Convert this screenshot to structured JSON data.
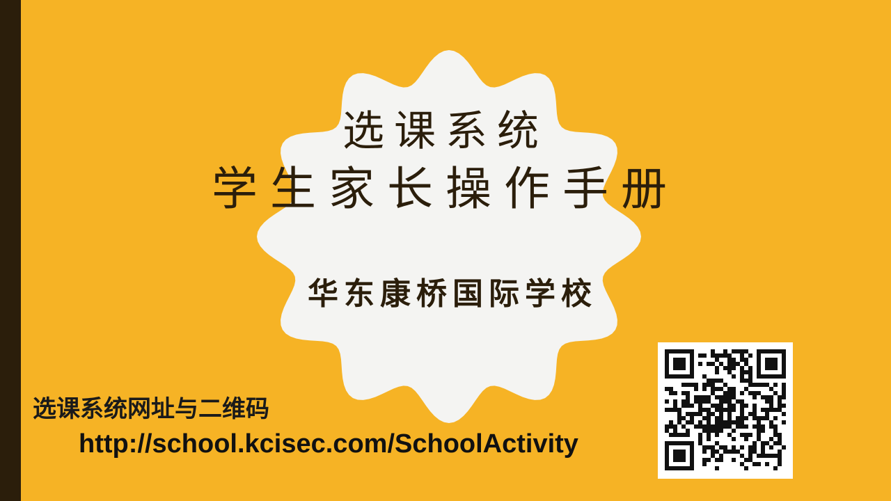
{
  "slide": {
    "title_line_1": "选课系统",
    "title_line_2": "学生家长操作手册",
    "school_name": "华东康桥国际学校",
    "url_caption": "选课系统网址与二维码",
    "url": "http://school.kcisec.com/SchoolActivity"
  },
  "colors": {
    "background": "#F6B325",
    "left_bar": "#2B1E0B",
    "badge_fill": "#F4F4F2",
    "title_text": "#2B1E0B"
  },
  "icons": {
    "qr_code": "qr-code-icon"
  }
}
